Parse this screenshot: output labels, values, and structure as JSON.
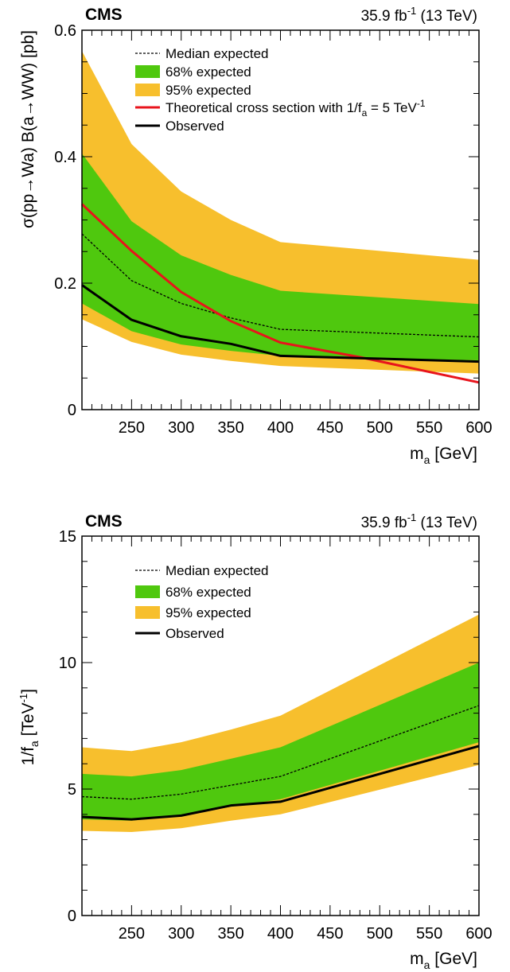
{
  "chart_data": [
    {
      "type": "line",
      "experiment": "CMS",
      "lumi_main": "35.9 fb",
      "lumi_sup": "-1",
      "lumi_tail": " (13 TeV)",
      "xlabel_main": "m",
      "xlabel_sub": "a",
      "xlabel_tail": " [GeV]",
      "ylabel": "σ(pp→Wa) B(a→WW) [pb]",
      "xlim": [
        200,
        600
      ],
      "ylim": [
        0,
        0.6
      ],
      "x_ticks": [
        "250",
        "300",
        "350",
        "400",
        "450",
        "500",
        "550",
        "600"
      ],
      "y_ticks": [
        "0",
        "0.2",
        "0.4",
        "0.6"
      ],
      "x": [
        200,
        250,
        300,
        350,
        400,
        600
      ],
      "band95": {
        "name": "95% expected",
        "color": "#f7bf2d",
        "low": [
          0.143,
          0.107,
          0.087,
          0.077,
          0.069,
          0.057
        ],
        "high": [
          0.567,
          0.42,
          0.345,
          0.3,
          0.265,
          0.237
        ]
      },
      "band68": {
        "name": "68% expected",
        "color": "#4fc80e",
        "low": [
          0.168,
          0.124,
          0.103,
          0.093,
          0.085,
          0.078
        ],
        "high": [
          0.405,
          0.298,
          0.244,
          0.213,
          0.188,
          0.167
        ]
      },
      "expected": {
        "name": "Median expected",
        "values": [
          0.278,
          0.204,
          0.168,
          0.145,
          0.127,
          0.115
        ]
      },
      "observed": {
        "name": "Observed",
        "values": [
          0.197,
          0.142,
          0.116,
          0.104,
          0.085,
          0.076
        ]
      },
      "theory": {
        "name": "Theoretical cross section with 1/f",
        "name_sub": "a",
        "name_tail": " = 5 TeV",
        "name_sup": "-1",
        "color": "#e8141c",
        "x": [
          200,
          250,
          300,
          350,
          400,
          480,
          600
        ],
        "values": [
          0.325,
          0.251,
          0.186,
          0.14,
          0.106,
          0.083,
          0.043
        ]
      }
    },
    {
      "type": "line",
      "experiment": "CMS",
      "lumi_main": "35.9 fb",
      "lumi_sup": "-1",
      "lumi_tail": " (13 TeV)",
      "xlabel_main": "m",
      "xlabel_sub": "a",
      "xlabel_tail": " [GeV]",
      "ylabel_main": "1/f",
      "ylabel_sub": "a",
      "ylabel_tail": " [TeV",
      "ylabel_sup": "-1",
      "ylabel_end": "]",
      "xlim": [
        200,
        600
      ],
      "ylim": [
        0,
        15
      ],
      "x_ticks": [
        "250",
        "300",
        "350",
        "400",
        "450",
        "500",
        "550",
        "600"
      ],
      "y_ticks": [
        "0",
        "5",
        "10",
        "15"
      ],
      "x": [
        200,
        250,
        300,
        350,
        400,
        600
      ],
      "band95": {
        "name": "95% expected",
        "color": "#f7bf2d",
        "low": [
          3.35,
          3.3,
          3.45,
          3.75,
          4.0,
          5.95
        ],
        "high": [
          6.65,
          6.5,
          6.85,
          7.35,
          7.9,
          11.9
        ]
      },
      "band68": {
        "name": "68% expected",
        "color": "#4fc80e",
        "low": [
          3.8,
          3.75,
          3.95,
          4.3,
          4.6,
          6.85
        ],
        "high": [
          5.6,
          5.5,
          5.75,
          6.2,
          6.65,
          10.0
        ]
      },
      "expected": {
        "name": "Median expected",
        "values": [
          4.7,
          4.6,
          4.8,
          5.15,
          5.5,
          8.3
        ]
      },
      "observed": {
        "name": "Observed",
        "values": [
          3.9,
          3.8,
          3.95,
          4.35,
          4.5,
          6.7
        ]
      }
    }
  ]
}
